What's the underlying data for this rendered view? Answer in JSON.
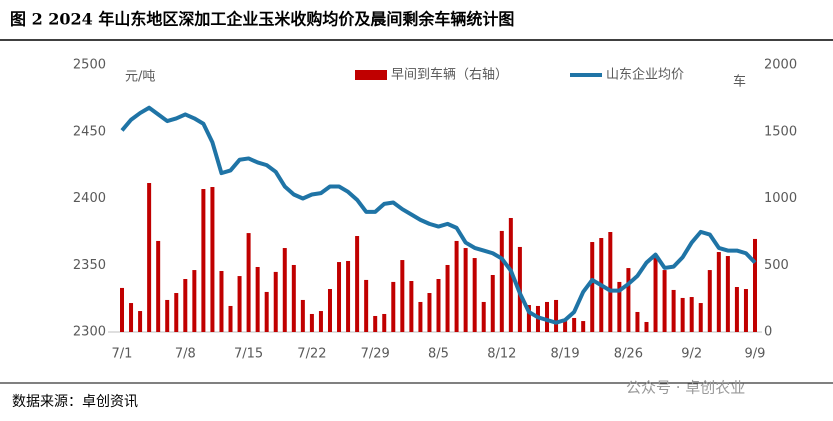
{
  "chart_data": {
    "type": "bar",
    "title": "图 2 2024 年山东地区深加工企业玉米收购均价及晨间剩余车辆统计图",
    "y_label": "元/吨",
    "y2_label": "车",
    "source": "数据来源：卓创资讯",
    "watermark": "公众号 · 卓创农业",
    "categories": [
      "7/1",
      null,
      null,
      null,
      null,
      null,
      null,
      "7/8",
      null,
      null,
      null,
      null,
      null,
      null,
      "7/15",
      null,
      null,
      null,
      null,
      null,
      null,
      "7/22",
      null,
      null,
      null,
      null,
      null,
      null,
      "7/29",
      null,
      null,
      null,
      null,
      null,
      null,
      "8/5",
      null,
      null,
      null,
      null,
      null,
      null,
      "8/12",
      null,
      null,
      null,
      null,
      null,
      null,
      "8/19",
      null,
      null,
      null,
      null,
      null,
      null,
      "8/26",
      null,
      null,
      null,
      null,
      null,
      null,
      "9/2",
      null,
      null,
      null,
      null,
      null,
      null,
      "9/9"
    ],
    "ylim": [
      2300,
      2500
    ],
    "yticks": [
      2300,
      2350,
      2400,
      2450,
      2500
    ],
    "y2lim": [
      0,
      2000
    ],
    "y2ticks": [
      0,
      500,
      1000,
      1500,
      2000
    ],
    "series": [
      {
        "name": "早间到车辆（右轴）",
        "type": "bar",
        "axis": "y2",
        "color": "#c00000",
        "values": [
          330,
          217,
          157,
          1116,
          682,
          240,
          292,
          397,
          464,
          1071,
          1086,
          457,
          195,
          419,
          741,
          487,
          300,
          450,
          629,
          502,
          240,
          135,
          157,
          322,
          524,
          532,
          719,
          390,
          120,
          135,
          375,
          539,
          382,
          225,
          292,
          397,
          502,
          682,
          629,
          554,
          225,
          427,
          757,
          854,
          637,
          202,
          195,
          225,
          240,
          90,
          105,
          82,
          674,
          704,
          749,
          375,
          479,
          150,
          75,
          554,
          464,
          315,
          255,
          262,
          217,
          464,
          599,
          569,
          337,
          322,
          697
        ]
      },
      {
        "name": "山东企业均价",
        "type": "line",
        "color": "#1f74a6",
        "values": [
          2451,
          2459,
          2464,
          2468,
          2463,
          2458,
          2460,
          2463,
          2460,
          2456,
          2442,
          2419,
          2421,
          2429,
          2430,
          2427,
          2425,
          2420,
          2409,
          2403,
          2400,
          2403,
          2404,
          2409,
          2409,
          2405,
          2399,
          2390,
          2390,
          2396,
          2397,
          2392,
          2388,
          2384,
          2381,
          2379,
          2381,
          2378,
          2367,
          2363,
          2361,
          2359,
          2355,
          2346,
          2329,
          2315,
          2311,
          2309,
          2307,
          2309,
          2315,
          2330,
          2339,
          2335,
          2331,
          2331,
          2336,
          2342,
          2352,
          2358,
          2348,
          2349,
          2356,
          2367,
          2375,
          2373,
          2363,
          2361,
          2361,
          2359,
          2352
        ]
      }
    ]
  }
}
